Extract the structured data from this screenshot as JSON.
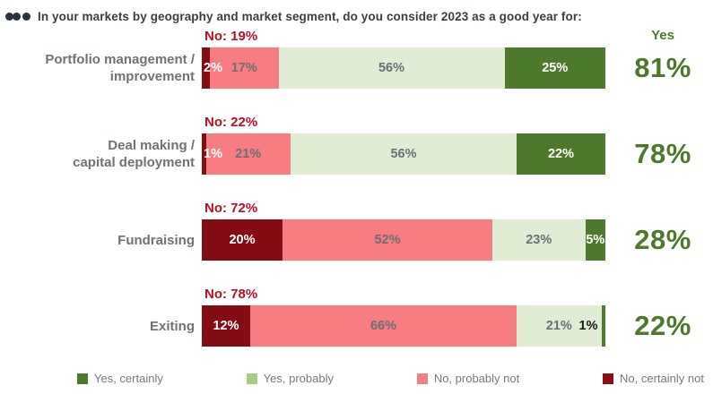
{
  "header": {
    "icon": "ellipsis-icon",
    "title": "In your markets by geography and market segment, do you consider 2023 as a good year for:"
  },
  "yes_column_header": "Yes",
  "colors": {
    "yes_certainly": "#4c792c",
    "yes_probably_bar": "#e0ecd4",
    "yes_probably_legend": "#a9cc80",
    "no_probably_not": "#f87d81",
    "no_certainly_not": "#830d12",
    "no_annotation_red": "#be0e24",
    "yes_total_green": "#4c792c",
    "category_text": "#6e7278",
    "inner_label_gray": "#6b6f74",
    "legend_text": "#75787d",
    "title_text": "#3a3e45"
  },
  "chart_data": {
    "type": "bar",
    "orientation": "horizontal",
    "stacked": true,
    "units": "percent",
    "xlim": [
      0,
      100
    ],
    "grid": false,
    "legend_position": "bottom",
    "title": "In your markets by geography and market segment, do you consider 2023 as a good year for:",
    "categories": [
      "Portfolio management / improvement",
      "Deal making / capital deployment",
      "Fundraising",
      "Exiting"
    ],
    "series": [
      {
        "name": "No, certainly not",
        "color": "#830d12",
        "values": [
          2,
          1,
          20,
          12
        ]
      },
      {
        "name": "No, probably not",
        "color": "#f87d81",
        "values": [
          17,
          21,
          52,
          66
        ]
      },
      {
        "name": "Yes, probably",
        "color": "#e0ecd4",
        "values": [
          56,
          56,
          23,
          21
        ]
      },
      {
        "name": "Yes, certainly",
        "color": "#4c792c",
        "values": [
          25,
          22,
          5,
          1
        ]
      }
    ],
    "no_totals": [
      "No: 19%",
      "No: 22%",
      "No: 72%",
      "No: 78%"
    ],
    "yes_totals": [
      "81%",
      "78%",
      "28%",
      "22%"
    ],
    "rows": [
      {
        "category_lines": [
          "Portfolio management /",
          "improvement"
        ],
        "no_label": "No: 19%",
        "yes_value": "81%",
        "segments": [
          {
            "name": "No, certainly not",
            "value": 2,
            "label": "2%",
            "color": "#830d12",
            "label_color": "#ffffff",
            "label_pos": "overflow-right"
          },
          {
            "name": "No, probably not",
            "value": 17,
            "label": "17%",
            "color": "#f87d81",
            "label_color": "#6b6f74",
            "label_pos": "center"
          },
          {
            "name": "Yes, probably",
            "value": 56,
            "label": "56%",
            "color": "#e0ecd4",
            "label_color": "#6b6f74",
            "label_pos": "center"
          },
          {
            "name": "Yes, certainly",
            "value": 25,
            "label": "25%",
            "color": "#4c792c",
            "label_color": "#ffffff",
            "label_pos": "center"
          }
        ]
      },
      {
        "category_lines": [
          "Deal making /",
          "capital deployment"
        ],
        "no_label": "No: 22%",
        "yes_value": "78%",
        "segments": [
          {
            "name": "No, certainly not",
            "value": 1,
            "label": "1%",
            "color": "#830d12",
            "label_color": "#ffffff",
            "label_pos": "overflow-right"
          },
          {
            "name": "No, probably not",
            "value": 21,
            "label": "21%",
            "color": "#f87d81",
            "label_color": "#6b6f74",
            "label_pos": "center"
          },
          {
            "name": "Yes, probably",
            "value": 56,
            "label": "56%",
            "color": "#e0ecd4",
            "label_color": "#6b6f74",
            "label_pos": "center"
          },
          {
            "name": "Yes, certainly",
            "value": 22,
            "label": "22%",
            "color": "#4c792c",
            "label_color": "#ffffff",
            "label_pos": "center"
          }
        ]
      },
      {
        "category_lines": [
          "Fundraising"
        ],
        "no_label": "No: 72%",
        "yes_value": "28%",
        "segments": [
          {
            "name": "No, certainly not",
            "value": 20,
            "label": "20%",
            "color": "#830d12",
            "label_color": "#ffffff",
            "label_pos": "center"
          },
          {
            "name": "No, probably not",
            "value": 52,
            "label": "52%",
            "color": "#f87d81",
            "label_color": "#6b6f74",
            "label_pos": "center"
          },
          {
            "name": "Yes, probably",
            "value": 23,
            "label": "23%",
            "color": "#e0ecd4",
            "label_color": "#6b6f74",
            "label_pos": "center"
          },
          {
            "name": "Yes, certainly",
            "value": 5,
            "label": "5%",
            "color": "#4c792c",
            "label_color": "#ffffff",
            "label_pos": "center"
          }
        ]
      },
      {
        "category_lines": [
          "Exiting"
        ],
        "no_label": "No: 78%",
        "yes_value": "22%",
        "segments": [
          {
            "name": "No, certainly not",
            "value": 12,
            "label": "12%",
            "color": "#830d12",
            "label_color": "#ffffff",
            "label_pos": "center"
          },
          {
            "name": "No, probably not",
            "value": 66,
            "label": "66%",
            "color": "#f87d81",
            "label_color": "#6b6f74",
            "label_pos": "center"
          },
          {
            "name": "Yes, probably",
            "value": 21,
            "label": "21%",
            "color": "#e0ecd4",
            "label_color": "#6b6f74",
            "label_pos": "center"
          },
          {
            "name": "Yes, certainly",
            "value": 1,
            "label": "1%",
            "color": "#4c792c",
            "label_color": "#1a1a1a",
            "label_pos": "outside-left"
          }
        ]
      }
    ]
  },
  "legend": {
    "items": [
      {
        "label": "Yes, certainly",
        "color": "#4c792c"
      },
      {
        "label": "Yes, probably",
        "color": "#a9cc80"
      },
      {
        "label": "No, probably not",
        "color": "#f87d81"
      },
      {
        "label": "No, certainly not",
        "color": "#8a1015"
      }
    ]
  }
}
